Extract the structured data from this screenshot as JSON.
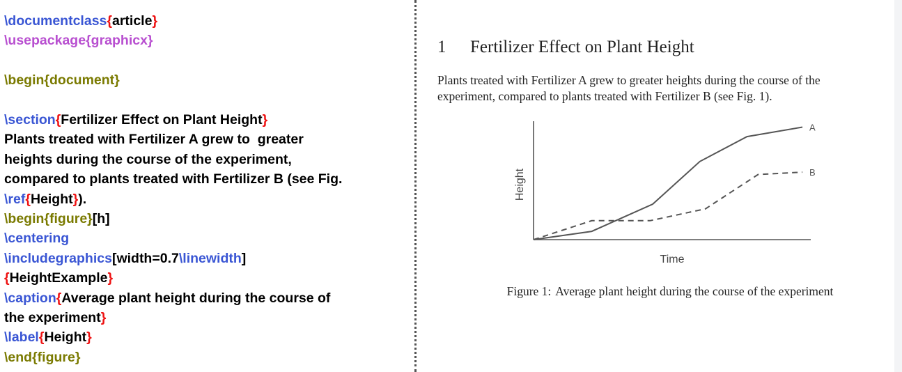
{
  "code": {
    "lines": [
      [
        {
          "t": "\\documentclass",
          "c": "blue"
        },
        {
          "t": "{",
          "c": "red"
        },
        {
          "t": "article",
          "c": "black"
        },
        {
          "t": "}",
          "c": "red"
        }
      ],
      [
        {
          "t": "\\usepackage{graphicx}",
          "c": "purple"
        }
      ],
      [],
      [
        {
          "t": "\\begin{document}",
          "c": "olive"
        }
      ],
      [],
      [
        {
          "t": "\\section",
          "c": "blue"
        },
        {
          "t": "{",
          "c": "red"
        },
        {
          "t": "Fertilizer Effect on Plant Height",
          "c": "black"
        },
        {
          "t": "}",
          "c": "red"
        }
      ],
      [
        {
          "t": "Plants treated with Fertilizer A grew to  greater",
          "c": "black"
        }
      ],
      [
        {
          "t": "heights during the course of the experiment,",
          "c": "black"
        }
      ],
      [
        {
          "t": "compared to plants treated with Fertilizer B (see Fig.",
          "c": "black"
        }
      ],
      [
        {
          "t": "\\ref",
          "c": "blue"
        },
        {
          "t": "{",
          "c": "red"
        },
        {
          "t": "Height",
          "c": "black"
        },
        {
          "t": "}",
          "c": "red"
        },
        {
          "t": ").",
          "c": "black"
        }
      ],
      [
        {
          "t": "\\begin{figure}",
          "c": "olive"
        },
        {
          "t": "[h]",
          "c": "black"
        }
      ],
      [
        {
          "t": "\\centering",
          "c": "blue"
        }
      ],
      [
        {
          "t": "\\includegraphics",
          "c": "blue"
        },
        {
          "t": "[width=0.7",
          "c": "black"
        },
        {
          "t": "\\linewidth",
          "c": "blue"
        },
        {
          "t": "]",
          "c": "black"
        }
      ],
      [
        {
          "t": "{",
          "c": "red"
        },
        {
          "t": "HeightExample",
          "c": "black"
        },
        {
          "t": "}",
          "c": "red"
        }
      ],
      [
        {
          "t": "\\caption",
          "c": "blue"
        },
        {
          "t": "{",
          "c": "red"
        },
        {
          "t": "Average plant height during the course of",
          "c": "black"
        }
      ],
      [
        {
          "t": "the experiment",
          "c": "black"
        },
        {
          "t": "}",
          "c": "red"
        }
      ],
      [
        {
          "t": "\\label",
          "c": "blue"
        },
        {
          "t": "{",
          "c": "red"
        },
        {
          "t": "Height",
          "c": "black"
        },
        {
          "t": "}",
          "c": "red"
        }
      ],
      [
        {
          "t": "\\end{figure}",
          "c": "olive"
        }
      ]
    ]
  },
  "rendered": {
    "section_number": "1",
    "section_title": "Fertilizer Effect on Plant Height",
    "body_lines": [
      "Plants treated with Fertilizer A grew to greater heights during the course of the",
      "experiment, compared to plants treated with Fertilizer B (see Fig. 1)."
    ],
    "caption_label": "Figure 1:",
    "caption_text": "Average plant height during the course of the experiment"
  },
  "colors": {
    "blue": "#3a56d4",
    "purple": "#b84fd0",
    "olive": "#7a7a00",
    "red": "#ee1111",
    "black": "#000000"
  },
  "chart_data": {
    "type": "line",
    "xlabel": "Time",
    "ylabel": "Height",
    "xlim": [
      0,
      10
    ],
    "ylim": [
      0,
      10
    ],
    "grid": false,
    "legend": "inline labels at line ends",
    "series": [
      {
        "name": "A",
        "style": "solid",
        "x": [
          0,
          2.1,
          4.3,
          6.0,
          7.7,
          9.7
        ],
        "y": [
          0,
          0.7,
          3.0,
          6.6,
          8.7,
          9.5
        ]
      },
      {
        "name": "B",
        "style": "dashed",
        "x": [
          0,
          2.1,
          4.2,
          6.2,
          8.1,
          9.7
        ],
        "y": [
          0,
          1.6,
          1.6,
          2.6,
          5.5,
          5.7
        ]
      }
    ]
  }
}
